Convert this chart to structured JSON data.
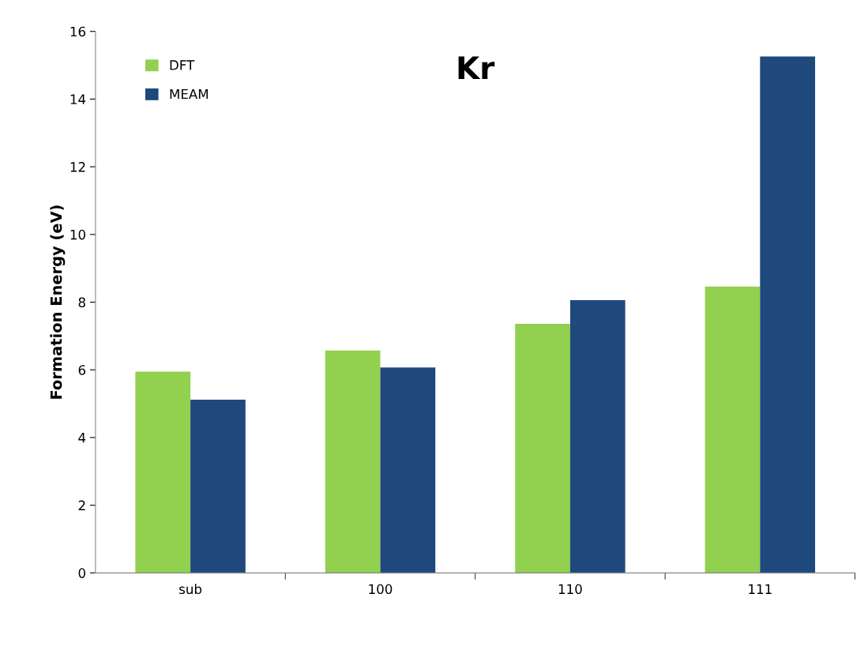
{
  "chart_data": {
    "type": "bar",
    "title": "Kr",
    "ylabel": "Formation Energy (eV)",
    "categories": [
      "sub",
      "100",
      "110",
      "111"
    ],
    "series": [
      {
        "name": "DFT",
        "color": "#92d050",
        "values": [
          5.95,
          6.57,
          7.36,
          8.46
        ]
      },
      {
        "name": "MEAM",
        "color": "#1f497d",
        "values": [
          5.12,
          6.07,
          8.06,
          15.26
        ]
      }
    ],
    "ylim": [
      0,
      16
    ],
    "yticks": [
      0,
      2,
      4,
      6,
      8,
      10,
      12,
      14,
      16
    ],
    "grid": false,
    "legend": "top left"
  }
}
